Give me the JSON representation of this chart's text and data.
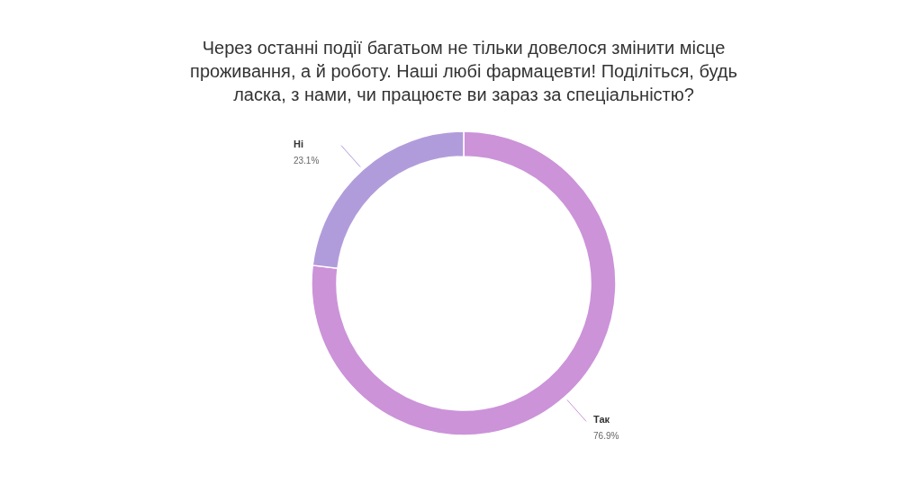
{
  "chart_data": {
    "type": "donut",
    "title": "Через останні події багатьом не тільки довелося змінити місце проживання, а й роботу. Наші любі фармацевти! Поділіться, будь ласка, з нами, чи працюєте ви зараз за спеціальністю?",
    "categories": [
      "Так",
      "Ні"
    ],
    "values": [
      76.9,
      23.1
    ],
    "colors": [
      "#cc93d9",
      "#b19cdb"
    ],
    "value_labels": [
      "76.9%",
      "23.1%"
    ]
  }
}
